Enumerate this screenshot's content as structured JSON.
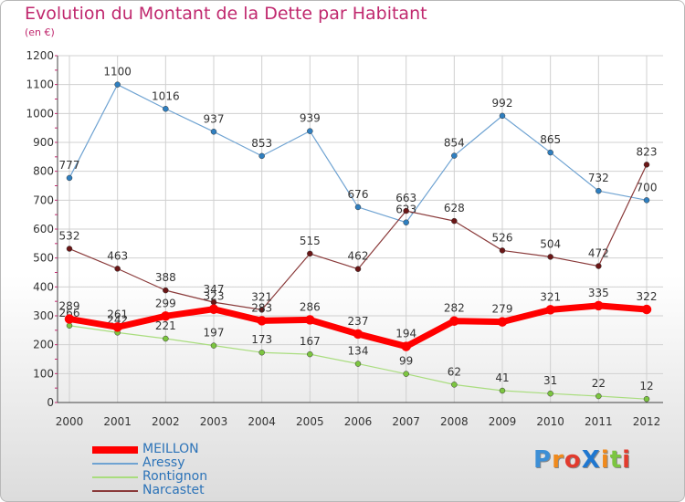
{
  "header": {
    "title": "Evolution du Montant de la Dette par Habitant",
    "subtitle": "(en €)"
  },
  "logo": {
    "text": "Proxiti"
  },
  "colors": {
    "title": "#c0286e",
    "legend_text": "#2c73b8",
    "grid": "#d0d0d0"
  },
  "chart_data": {
    "type": "line",
    "title": "Evolution du Montant de la Dette par Habitant",
    "subtitle": "(en €)",
    "categories": [
      "2000",
      "2001",
      "2002",
      "2003",
      "2004",
      "2005",
      "2006",
      "2007",
      "2008",
      "2009",
      "2010",
      "2011",
      "2012"
    ],
    "ylim": [
      0,
      1200
    ],
    "yticks": [
      0,
      100,
      200,
      300,
      400,
      500,
      600,
      700,
      800,
      900,
      1000,
      1100,
      1200
    ],
    "grid": true,
    "legend_position": "bottom-left",
    "series": [
      {
        "name": "Aressy",
        "color": "#6fa3d2",
        "marker": "#2f7fc0",
        "width": 1.2,
        "values": [
          777,
          1100,
          1016,
          937,
          853,
          939,
          676,
          623,
          854,
          992,
          865,
          732,
          700
        ]
      },
      {
        "name": "Rontignon",
        "color": "#a9dd7e",
        "marker": "#7cc540",
        "width": 1.2,
        "values": [
          266,
          242,
          221,
          197,
          173,
          167,
          134,
          99,
          62,
          41,
          31,
          22,
          12
        ]
      },
      {
        "name": "Narcastet",
        "color": "#8a3a3a",
        "marker": "#6a1616",
        "width": 1.2,
        "values": [
          532,
          463,
          388,
          347,
          321,
          515,
          462,
          663,
          628,
          526,
          504,
          472,
          823
        ]
      },
      {
        "name": "MEILLON",
        "color": "#ff0000",
        "marker": "#ff0000",
        "width": 7,
        "values": [
          289,
          261,
          299,
          323,
          283,
          286,
          237,
          194,
          282,
          279,
          321,
          335,
          322
        ]
      }
    ],
    "legend": [
      "MEILLON",
      "Aressy",
      "Rontignon",
      "Narcastet"
    ]
  }
}
